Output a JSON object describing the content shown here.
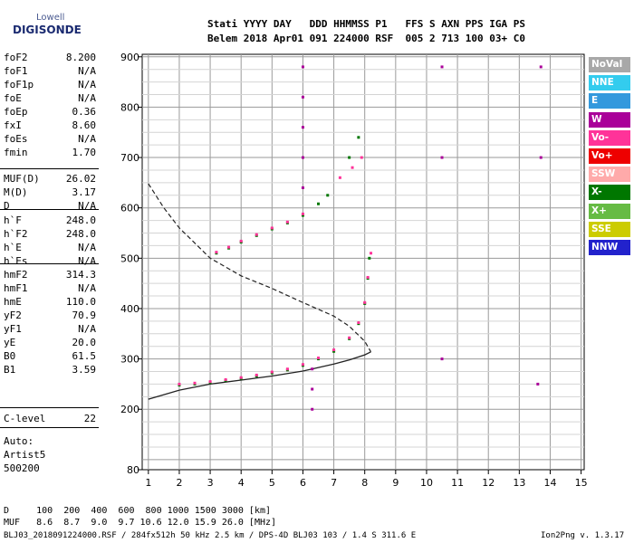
{
  "logo": {
    "line1": "Lowell",
    "line2": "DIGISONDE"
  },
  "header": {
    "line1": "Stati YYYY DAY   DDD HHMMSS P1   FFS S AXN PPS IGA PS",
    "line2": "Belem 2018 Apr01 091 224000 RSF  005 2 713 100 03+ C0"
  },
  "params_group1": [
    {
      "k": "foF2",
      "v": "8.200"
    },
    {
      "k": "foF1",
      "v": "N/A"
    },
    {
      "k": "foF1p",
      "v": "N/A"
    },
    {
      "k": "foE",
      "v": "N/A"
    },
    {
      "k": "foEp",
      "v": "0.36"
    },
    {
      "k": "fxI",
      "v": "8.60"
    },
    {
      "k": "foEs",
      "v": "N/A"
    },
    {
      "k": "fmin",
      "v": "1.70"
    }
  ],
  "params_group2": [
    {
      "k": "MUF(D)",
      "v": "26.02"
    },
    {
      "k": "M(D)",
      "v": "3.17"
    },
    {
      "k": "D",
      "v": "N/A"
    }
  ],
  "params_group3": [
    {
      "k": "h`F",
      "v": "248.0"
    },
    {
      "k": "h`F2",
      "v": "248.0"
    },
    {
      "k": "h`E",
      "v": "N/A"
    },
    {
      "k": "h`Es",
      "v": "N/A"
    }
  ],
  "params_group4": [
    {
      "k": "hmF2",
      "v": "314.3"
    },
    {
      "k": "hmF1",
      "v": "N/A"
    },
    {
      "k": "hmE",
      "v": "110.0"
    },
    {
      "k": "yF2",
      "v": "70.9"
    },
    {
      "k": "yF1",
      "v": "N/A"
    },
    {
      "k": "yE",
      "v": "20.0"
    },
    {
      "k": "B0",
      "v": "61.5"
    },
    {
      "k": "B1",
      "v": "3.59"
    }
  ],
  "params_group5": [
    {
      "k": "C-level",
      "v": "22"
    }
  ],
  "auto_block": {
    "line1": "Auto:",
    "line2": "Artist5",
    "line3": "500200"
  },
  "legend": [
    {
      "label": "NoVal",
      "color": "#a8a8a8"
    },
    {
      "label": "NNE",
      "color": "#33ccee"
    },
    {
      "label": "E",
      "color": "#3399dd"
    },
    {
      "label": "W",
      "color": "#aa0099"
    },
    {
      "label": "Vo-",
      "color": "#ff3399"
    },
    {
      "label": "Vo+",
      "color": "#ee0000"
    },
    {
      "label": "SSW",
      "color": "#ffaaaa"
    },
    {
      "label": "X-",
      "color": "#007700"
    },
    {
      "label": "X+",
      "color": "#66bb44"
    },
    {
      "label": "SSE",
      "color": "#cccc00"
    },
    {
      "label": "NNW",
      "color": "#2222cc"
    }
  ],
  "footer": {
    "d_row": "D     100  200  400  600  800 1000 1500 3000 [km]",
    "muf_row": "MUF   8.6  8.7  9.0  9.7 10.6 12.0 15.9 26.0 [MHz]",
    "file_line": "BLJ03_2018091224000.RSF / 284fx512h 50 kHz 2.5 km / DPS-4D BLJ03 103 / 1.4 S 311.6 E",
    "version": "Ion2Png v. 1.3.17"
  },
  "chart_data": {
    "type": "scatter",
    "xlim": [
      0.8,
      15.1
    ],
    "ylim": [
      80,
      905
    ],
    "x_ticks": [
      1,
      2,
      3,
      4,
      5,
      6,
      7,
      8,
      9,
      10,
      11,
      12,
      13,
      14,
      15
    ],
    "y_ticks": [
      80,
      200,
      300,
      400,
      500,
      600,
      700,
      800,
      900
    ],
    "grid": true,
    "series": [
      {
        "name": "X-",
        "color": "#007700",
        "points": [
          [
            2.0,
            248
          ],
          [
            2.5,
            250
          ],
          [
            3.0,
            253
          ],
          [
            3.5,
            257
          ],
          [
            4.0,
            261
          ],
          [
            4.5,
            266
          ],
          [
            5.0,
            272
          ],
          [
            5.5,
            278
          ],
          [
            6.0,
            287
          ],
          [
            6.5,
            300
          ],
          [
            7.0,
            315
          ],
          [
            7.5,
            340
          ],
          [
            7.8,
            370
          ],
          [
            8.0,
            410
          ],
          [
            8.1,
            460
          ],
          [
            8.15,
            500
          ],
          [
            3.2,
            510
          ],
          [
            3.6,
            520
          ],
          [
            4.0,
            532
          ],
          [
            4.5,
            545
          ],
          [
            5.0,
            558
          ],
          [
            5.5,
            570
          ],
          [
            6.0,
            585
          ],
          [
            6.5,
            608
          ],
          [
            6.8,
            625
          ],
          [
            7.5,
            700
          ],
          [
            7.8,
            740
          ]
        ]
      },
      {
        "name": "Vo-",
        "color": "#ff3399",
        "points": [
          [
            2.0,
            250
          ],
          [
            2.5,
            252
          ],
          [
            3.0,
            255
          ],
          [
            3.5,
            259
          ],
          [
            4.0,
            263
          ],
          [
            4.5,
            268
          ],
          [
            5.0,
            274
          ],
          [
            5.5,
            280
          ],
          [
            6.0,
            289
          ],
          [
            6.5,
            302
          ],
          [
            7.0,
            318
          ],
          [
            7.5,
            342
          ],
          [
            7.8,
            372
          ],
          [
            8.0,
            412
          ],
          [
            8.1,
            462
          ],
          [
            8.2,
            510
          ],
          [
            3.2,
            512
          ],
          [
            3.6,
            522
          ],
          [
            4.0,
            534
          ],
          [
            4.5,
            547
          ],
          [
            5.0,
            560
          ],
          [
            5.5,
            572
          ],
          [
            6.0,
            588
          ],
          [
            7.2,
            660
          ],
          [
            7.6,
            680
          ],
          [
            7.9,
            700
          ]
        ]
      },
      {
        "name": "W",
        "color": "#aa0099",
        "points": [
          [
            6.0,
            880
          ],
          [
            6.0,
            820
          ],
          [
            6.0,
            760
          ],
          [
            6.0,
            700
          ],
          [
            6.0,
            640
          ],
          [
            6.3,
            200
          ],
          [
            6.3,
            240
          ],
          [
            6.3,
            280
          ],
          [
            10.5,
            880
          ],
          [
            10.5,
            700
          ],
          [
            10.5,
            300
          ],
          [
            13.7,
            880
          ],
          [
            13.7,
            700
          ],
          [
            13.6,
            250
          ]
        ]
      }
    ],
    "model_profile_solid": [
      [
        1.0,
        220
      ],
      [
        2.0,
        238
      ],
      [
        3.0,
        250
      ],
      [
        4.0,
        258
      ],
      [
        5.0,
        266
      ],
      [
        6.0,
        276
      ],
      [
        7.0,
        290
      ],
      [
        7.5,
        298
      ],
      [
        8.0,
        308
      ],
      [
        8.2,
        314
      ]
    ],
    "model_profile_dashed": [
      [
        1.0,
        648
      ],
      [
        1.5,
        600
      ],
      [
        2.0,
        560
      ],
      [
        3.0,
        500
      ],
      [
        4.0,
        465
      ],
      [
        5.0,
        440
      ],
      [
        6.0,
        412
      ],
      [
        7.0,
        385
      ],
      [
        7.5,
        365
      ],
      [
        8.0,
        335
      ],
      [
        8.2,
        314
      ]
    ]
  }
}
